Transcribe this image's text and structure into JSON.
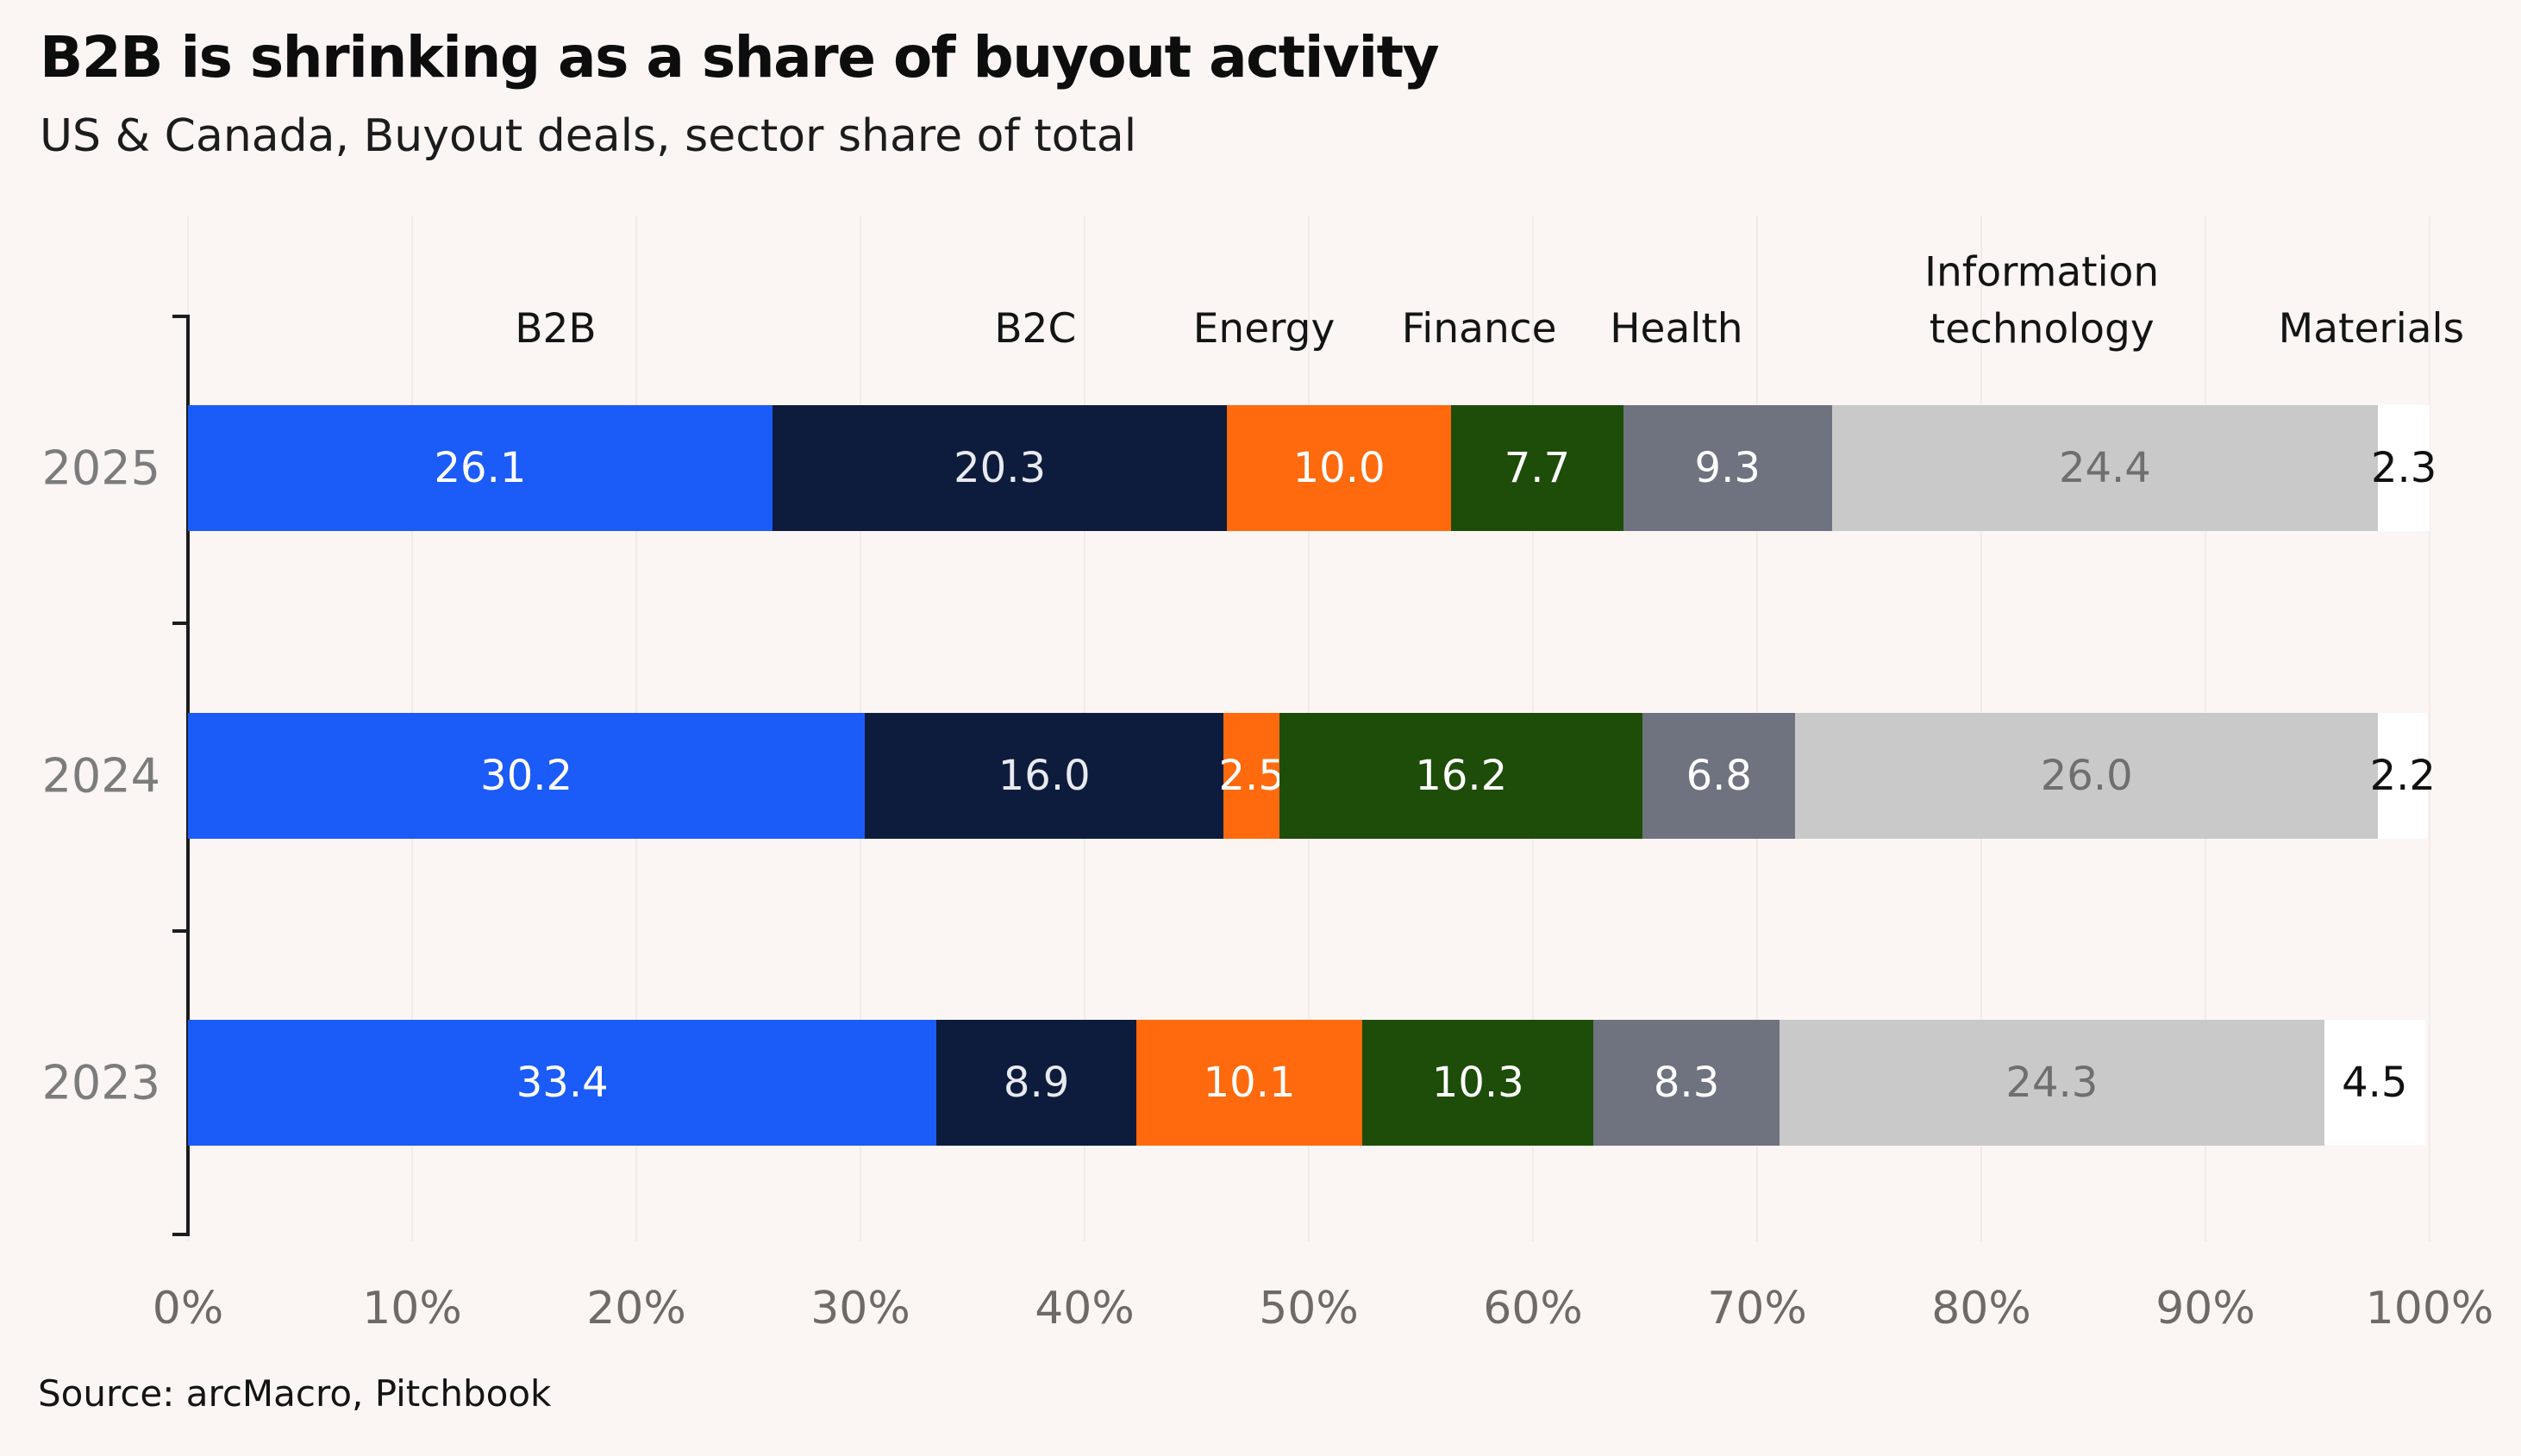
{
  "title": "B2B is shrinking as a share of buyout activity",
  "subtitle": "US & Canada, Buyout deals, sector share of total",
  "source": "Source: arcMacro, Pitchbook",
  "chart_data": {
    "type": "bar",
    "orientation": "horizontal-stacked",
    "title": "B2B is shrinking as a share of buyout activity",
    "subtitle": "US & Canada, Buyout deals, sector share of total",
    "categories": [
      "2025",
      "2024",
      "2023"
    ],
    "series": [
      {
        "name": "B2B",
        "color": "#1b5bf8",
        "label_color": "#ffffff",
        "header_x_pct": 16.4,
        "values": [
          26.1,
          30.2,
          33.4
        ]
      },
      {
        "name": "B2C",
        "color": "#0d1c3d",
        "label_color": "#e9e9f0",
        "header_x_pct": 37.8,
        "values": [
          20.3,
          16.0,
          8.9
        ]
      },
      {
        "name": "Energy",
        "color": "#fe6a0d",
        "label_color": "#ffffff",
        "header_x_pct": 48.0,
        "values": [
          10.0,
          2.5,
          10.1
        ]
      },
      {
        "name": "Finance",
        "color": "#1d4d08",
        "label_color": "#ffffff",
        "header_x_pct": 57.6,
        "values": [
          7.7,
          16.2,
          10.3
        ]
      },
      {
        "name": "Health",
        "color": "#6f7380",
        "label_color": "#ffffff",
        "header_x_pct": 66.4,
        "values": [
          9.3,
          6.8,
          8.3
        ]
      },
      {
        "name": "Information technology",
        "color": "#c9c9c9",
        "label_color": "#6f6f6f",
        "header_x_pct": 82.7,
        "values": [
          24.4,
          26.0,
          24.3
        ]
      },
      {
        "name": "Materials",
        "color": "#ffffff",
        "label_color": "#111111",
        "header_x_pct": 97.4,
        "values": [
          2.3,
          2.2,
          4.5
        ]
      }
    ],
    "x_ticks": [
      "0%",
      "10%",
      "20%",
      "30%",
      "40%",
      "50%",
      "60%",
      "70%",
      "80%",
      "90%",
      "100%"
    ],
    "xlim": [
      0,
      100
    ],
    "value_format": "one-decimal",
    "grid": "vertical-faint",
    "legend_position": "column-headers-above-bars"
  },
  "colors": {
    "background": "#fbf6f3",
    "axis": "#1c1c1c",
    "gridline": "#f2ebe8",
    "year_label": "#7c7c7c",
    "x_tick_label": "#6e6a68"
  }
}
